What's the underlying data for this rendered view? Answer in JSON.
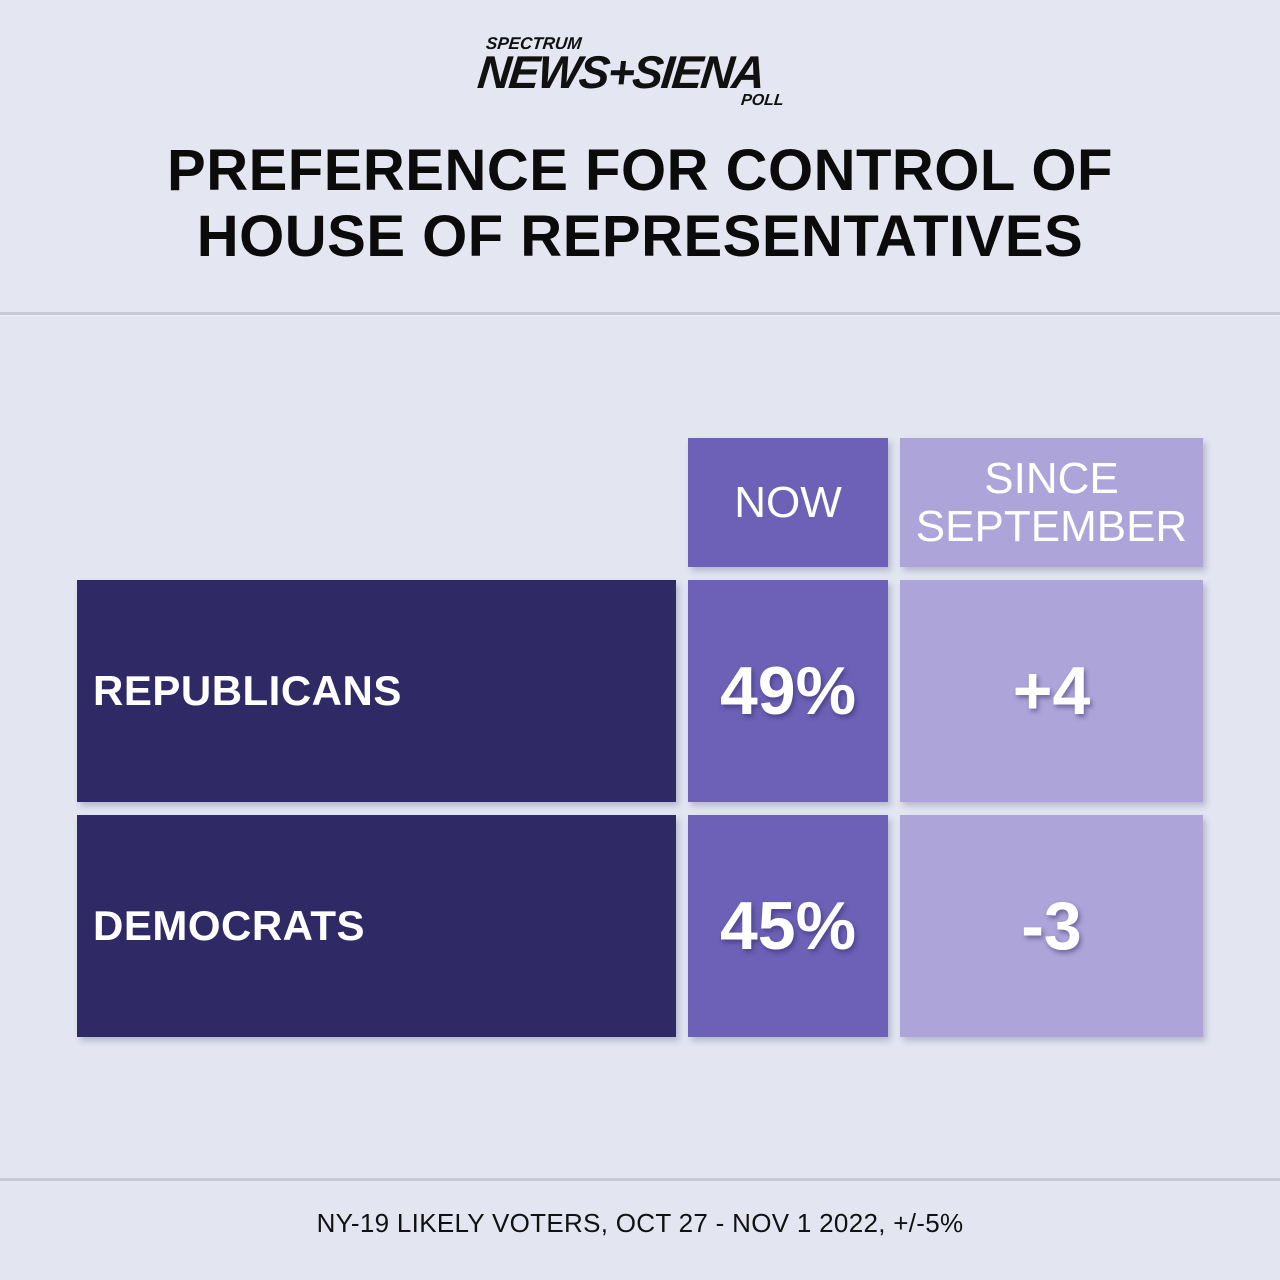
{
  "logo": {
    "top": "SPECTRUM",
    "main": "NEWS+SIENA",
    "sub": "POLL"
  },
  "title_lines": [
    "PREFERENCE FOR CONTROL OF",
    "HOUSE OF REPRESENTATIVES"
  ],
  "colors": {
    "background": "#e3e6f1",
    "party_cell": "#2f2a66",
    "now_cell": "#6c61b7",
    "since_cell": "#ada4d9"
  },
  "chart_data": {
    "type": "table",
    "title": "PREFERENCE FOR CONTROL OF HOUSE OF REPRESENTATIVES",
    "columns": [
      {
        "key": "now",
        "label_lines": [
          "NOW"
        ]
      },
      {
        "key": "since",
        "label_lines": [
          "SINCE",
          "SEPTEMBER"
        ]
      }
    ],
    "rows": [
      {
        "label": "REPUBLICANS",
        "now": "49%",
        "since": "+4",
        "now_value": 49,
        "since_value": 4
      },
      {
        "label": "DEMOCRATS",
        "now": "45%",
        "since": "-3",
        "now_value": 45,
        "since_value": -3
      }
    ]
  },
  "footer": "NY-19 LIKELY VOTERS, OCT 27 - NOV 1 2022, +/-5%"
}
